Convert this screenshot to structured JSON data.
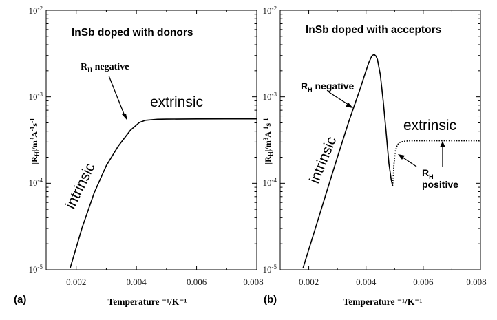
{
  "chart_data": [
    {
      "type": "line",
      "panel_label": "(a)",
      "title": "InSb doped with donors",
      "xlabel": "Temperature",
      "xlabel_unit": "⁻¹/K⁻¹",
      "ylabel": "|RH|/m³A⁻¹s⁻¹",
      "x_ticks": [
        "0.002",
        "0.004",
        "0.006",
        "0.008"
      ],
      "xlim": [
        0.001,
        0.008
      ],
      "y_scale": "log",
      "ylim": [
        1e-05,
        0.01
      ],
      "y_ticks": [
        {
          "base": "10",
          "exp": "-5"
        },
        {
          "base": "10",
          "exp": "-4"
        },
        {
          "base": "10",
          "exp": "-3"
        },
        {
          "base": "10",
          "exp": "-2"
        }
      ],
      "grid": false,
      "series": [
        {
          "style": "solid",
          "x": [
            0.0018,
            0.0022,
            0.0026,
            0.003,
            0.0034,
            0.0038,
            0.0041,
            0.0043,
            0.0047,
            0.005,
            0.006,
            0.007,
            0.008
          ],
          "y": [
            1.05e-05,
            3.1e-05,
            7.8e-05,
            0.00016,
            0.00027,
            0.00041,
            0.000505,
            0.000535,
            0.00055,
            0.000552,
            0.000555,
            0.000556,
            0.000556
          ]
        }
      ],
      "annotations": [
        {
          "id": "extrinsic",
          "text": "extrinsic"
        },
        {
          "id": "intrinsic",
          "text": "intrinsic"
        },
        {
          "id": "rh",
          "text_main": "R",
          "text_sub": "H",
          "text_rest": " negative"
        }
      ]
    },
    {
      "type": "line",
      "panel_label": "(b)",
      "title": "InSb doped with acceptors",
      "xlabel": "Temperature",
      "xlabel_unit": "⁻¹/K⁻¹",
      "ylabel": "|RH|/m³A⁻¹s⁻¹",
      "x_ticks": [
        "0.002",
        "0.004",
        "0.006",
        "0.008"
      ],
      "xlim": [
        0.001,
        0.008
      ],
      "y_scale": "log",
      "ylim": [
        1e-05,
        0.01
      ],
      "y_ticks": [
        {
          "base": "10",
          "exp": "-5"
        },
        {
          "base": "10",
          "exp": "-4"
        },
        {
          "base": "10",
          "exp": "-3"
        },
        {
          "base": "10",
          "exp": "-2"
        }
      ],
      "grid": false,
      "series": [
        {
          "style": "solid",
          "x": [
            0.0018,
            0.0022,
            0.0026,
            0.003,
            0.0034,
            0.0038,
            0.004,
            0.0041,
            0.0042,
            0.00428,
            0.00435,
            0.0044,
            0.0045,
            0.0046,
            0.0047,
            0.0048,
            0.00488,
            0.00493
          ],
          "y": [
            1.05e-05,
            2.8e-05,
            7.5e-05,
            0.0002,
            0.00052,
            0.00125,
            0.002,
            0.0025,
            0.00295,
            0.0031,
            0.00295,
            0.0027,
            0.0018,
            0.0009,
            0.0004,
            0.00017,
            0.00011,
            9.3e-05
          ]
        },
        {
          "style": "dotted",
          "x": [
            0.00493,
            0.00498,
            0.00503,
            0.0051,
            0.0052,
            0.0054,
            0.0056,
            0.006,
            0.007,
            0.008
          ],
          "y": [
            9.3e-05,
            0.00017,
            0.00024,
            0.00028,
            0.0003,
            0.000308,
            0.00031,
            0.00031,
            0.00031,
            0.00031
          ]
        }
      ],
      "annotations": [
        {
          "id": "extrinsic",
          "text": "extrinsic"
        },
        {
          "id": "intrinsic",
          "text": "intrinsic"
        },
        {
          "id": "rh_neg",
          "text_main": "R",
          "text_sub": "H",
          "text_rest": " negative"
        },
        {
          "id": "rh_pos",
          "text_main": "R",
          "text_sub": "H",
          "text_line2": "positive"
        }
      ]
    }
  ]
}
